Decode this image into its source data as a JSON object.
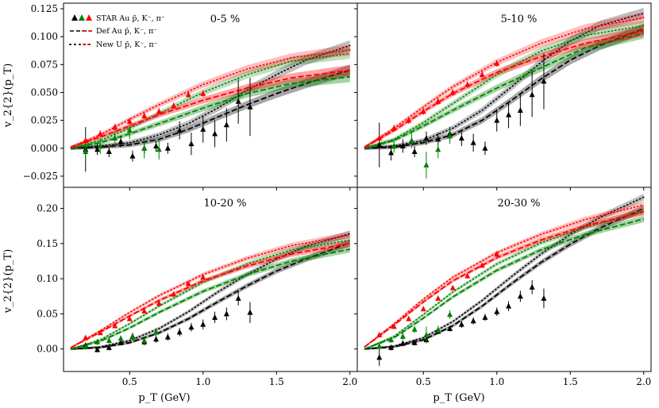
{
  "chart_data": {
    "type": "line",
    "xlabel": "p_T (GeV)",
    "ylabel": "v_2{2}(p_T)",
    "xlim": [
      0.05,
      2.05
    ],
    "xticks": [
      0.5,
      1.0,
      1.5,
      2.0
    ],
    "xtick_labels": [
      "0.5",
      "1.0",
      "1.5",
      "2.0"
    ],
    "colors": {
      "pbar": "#000000",
      "kaon": "#008000",
      "pion": "#ff0000"
    },
    "legend": {
      "location": "top-left of first panel",
      "entries": [
        {
          "label": "STAR Au p̄, K⁻, π⁻",
          "style": "triangles"
        },
        {
          "label": "Def Au p̄, K⁻, π⁻",
          "style": "dashed"
        },
        {
          "label": "New U p̄, K⁻, π⁻",
          "style": "dotted"
        }
      ]
    },
    "panels": [
      {
        "title": "0-5 %",
        "ylim": [
          -0.035,
          0.13
        ],
        "yticks": [
          -0.025,
          0.0,
          0.025,
          0.05,
          0.075,
          0.1,
          0.125
        ],
        "ytick_labels": [
          "−0.025",
          "0.000",
          "0.025",
          "0.050",
          "0.075",
          "0.100",
          "0.125"
        ],
        "star": {
          "pion": {
            "x": [
              0.2,
              0.3,
              0.4,
              0.5,
              0.6,
              0.7,
              0.8,
              0.9,
              1.0
            ],
            "y": [
              0.007,
              0.013,
              0.019,
              0.024,
              0.029,
              0.033,
              0.038,
              0.048,
              0.049
            ],
            "err": [
              0.003,
              0.003,
              0.003,
              0.003,
              0.003,
              0.003,
              0.003,
              0.003,
              0.003
            ]
          },
          "kaon": {
            "x": [
              0.2,
              0.3,
              0.4,
              0.5,
              0.6,
              0.7
            ],
            "y": [
              -0.003,
              0.002,
              0.009,
              0.016,
              0.0,
              -0.001
            ],
            "err": [
              0.008,
              0.007,
              0.008,
              0.008,
              0.009,
              0.009
            ]
          },
          "pbar": {
            "x": [
              0.2,
              0.28,
              0.36,
              0.44,
              0.52,
              0.6,
              0.68,
              0.76,
              0.84,
              0.92,
              1.0,
              1.08,
              1.16,
              1.24,
              1.32
            ],
            "y": [
              -0.001,
              -0.001,
              -0.003,
              0.006,
              -0.007,
              0.0,
              0.002,
              0.0,
              0.016,
              0.004,
              0.017,
              0.013,
              0.021,
              0.042,
              0.037
            ],
            "err": [
              0.02,
              0.005,
              0.005,
              0.005,
              0.005,
              0.005,
              0.005,
              0.005,
              0.008,
              0.01,
              0.012,
              0.012,
              0.015,
              0.02,
              0.026
            ]
          }
        },
        "models": {
          "pion": {
            "x": [
              0.1,
              0.3,
              0.5,
              0.7,
              1.0,
              1.3,
              1.6,
              2.0
            ],
            "def": [
              0.001,
              0.01,
              0.02,
              0.03,
              0.043,
              0.054,
              0.063,
              0.07
            ],
            "newu": [
              0.001,
              0.012,
              0.026,
              0.039,
              0.057,
              0.071,
              0.081,
              0.088
            ]
          },
          "kaon": {
            "x": [
              0.1,
              0.3,
              0.5,
              0.7,
              1.0,
              1.3,
              1.6,
              2.0
            ],
            "def": [
              0.0,
              0.005,
              0.013,
              0.022,
              0.036,
              0.049,
              0.058,
              0.064
            ],
            "newu": [
              0.0,
              0.007,
              0.018,
              0.031,
              0.05,
              0.066,
              0.078,
              0.085
            ]
          },
          "pbar": {
            "x": [
              0.1,
              0.3,
              0.5,
              0.7,
              0.9,
              1.1,
              1.3,
              1.5,
              1.7,
              2.0
            ],
            "def": [
              0.0,
              0.001,
              0.003,
              0.008,
              0.017,
              0.028,
              0.039,
              0.049,
              0.058,
              0.07
            ],
            "newu": [
              0.0,
              0.002,
              0.005,
              0.012,
              0.022,
              0.036,
              0.052,
              0.066,
              0.079,
              0.092
            ]
          }
        }
      },
      {
        "title": "5-10 %",
        "ylim": [
          -0.035,
          0.13
        ],
        "yticks": [
          -0.025,
          0.0,
          0.025,
          0.05,
          0.075,
          0.1,
          0.125
        ],
        "ytick_labels": [
          "",
          "",
          "",
          "",
          "",
          "",
          ""
        ],
        "star": {
          "pion": {
            "x": [
              0.2,
              0.3,
              0.4,
              0.5,
              0.6,
              0.7,
              0.8,
              0.9,
              1.0
            ],
            "y": [
              0.009,
              0.018,
              0.025,
              0.033,
              0.042,
              0.05,
              0.057,
              0.066,
              0.076
            ],
            "err": [
              0.003,
              0.003,
              0.003,
              0.003,
              0.003,
              0.003,
              0.003,
              0.003,
              0.003
            ]
          },
          "kaon": {
            "x": [
              0.3,
              0.42,
              0.52,
              0.6,
              0.68
            ],
            "y": [
              0.002,
              0.007,
              -0.015,
              -0.001,
              0.011
            ],
            "err": [
              0.006,
              0.007,
              0.012,
              0.008,
              0.007
            ]
          },
          "pbar": {
            "x": [
              0.2,
              0.28,
              0.36,
              0.44,
              0.52,
              0.6,
              0.68,
              0.76,
              0.84,
              0.92,
              1.0,
              1.08,
              1.16,
              1.24,
              1.32
            ],
            "y": [
              0.003,
              -0.004,
              0.002,
              -0.003,
              0.009,
              0.008,
              0.013,
              0.009,
              0.005,
              0.0,
              0.025,
              0.03,
              0.034,
              0.048,
              0.06
            ],
            "err": [
              0.02,
              0.007,
              0.006,
              0.005,
              0.006,
              0.006,
              0.006,
              0.007,
              0.008,
              0.006,
              0.01,
              0.012,
              0.014,
              0.02,
              0.025
            ]
          }
        },
        "models": {
          "pion": {
            "x": [
              0.1,
              0.3,
              0.5,
              0.7,
              1.0,
              1.3,
              1.6,
              2.0
            ],
            "def": [
              0.001,
              0.016,
              0.033,
              0.049,
              0.068,
              0.082,
              0.094,
              0.105
            ],
            "newu": [
              0.001,
              0.018,
              0.037,
              0.055,
              0.077,
              0.094,
              0.107,
              0.117
            ]
          },
          "kaon": {
            "x": [
              0.1,
              0.3,
              0.5,
              0.7,
              1.0,
              1.3,
              1.6,
              2.0
            ],
            "def": [
              0.0,
              0.007,
              0.02,
              0.034,
              0.054,
              0.072,
              0.09,
              0.103
            ],
            "newu": [
              0.0,
              0.008,
              0.023,
              0.04,
              0.066,
              0.087,
              0.101,
              0.11
            ]
          },
          "pbar": {
            "x": [
              0.1,
              0.3,
              0.5,
              0.7,
              0.9,
              1.1,
              1.3,
              1.5,
              1.7,
              2.0
            ],
            "def": [
              0.0,
              0.001,
              0.005,
              0.012,
              0.025,
              0.043,
              0.062,
              0.079,
              0.092,
              0.107
            ],
            "newu": [
              0.0,
              0.002,
              0.007,
              0.018,
              0.034,
              0.055,
              0.077,
              0.096,
              0.11,
              0.121
            ]
          }
        }
      },
      {
        "title": "10-20 %",
        "ylim": [
          -0.032,
          0.23
        ],
        "yticks": [
          0.0,
          0.05,
          0.1,
          0.15,
          0.2
        ],
        "ytick_labels": [
          "0.00",
          "0.05",
          "0.10",
          "0.15",
          "0.20"
        ],
        "star": {
          "pion": {
            "x": [
              0.2,
              0.3,
              0.4,
              0.5,
              0.6,
              0.7,
              0.8,
              0.9,
              1.0
            ],
            "y": [
              0.016,
              0.023,
              0.033,
              0.043,
              0.054,
              0.065,
              0.078,
              0.093,
              0.102
            ],
            "err": [
              0.003,
              0.003,
              0.003,
              0.003,
              0.003,
              0.003,
              0.003,
              0.003,
              0.003
            ]
          },
          "kaon": {
            "x": [
              0.2,
              0.28,
              0.36,
              0.44,
              0.52,
              0.6,
              0.68
            ],
            "y": [
              0.003,
              0.01,
              0.012,
              0.015,
              0.017,
              0.012,
              0.024
            ],
            "err": [
              0.004,
              0.004,
              0.004,
              0.004,
              0.004,
              0.006,
              0.006
            ]
          },
          "pbar": {
            "x": [
              0.2,
              0.28,
              0.36,
              0.44,
              0.52,
              0.6,
              0.68,
              0.76,
              0.84,
              0.92,
              1.0,
              1.08,
              1.16,
              1.24,
              1.32
            ],
            "y": [
              0.005,
              -0.001,
              0.002,
              0.009,
              0.018,
              0.01,
              0.014,
              0.017,
              0.024,
              0.031,
              0.035,
              0.045,
              0.05,
              0.072,
              0.052
            ],
            "err": [
              0.004,
              0.004,
              0.004,
              0.004,
              0.005,
              0.005,
              0.005,
              0.005,
              0.006,
              0.006,
              0.007,
              0.008,
              0.009,
              0.01,
              0.015
            ]
          }
        },
        "models": {
          "pion": {
            "x": [
              0.1,
              0.3,
              0.5,
              0.7,
              1.0,
              1.3,
              1.6,
              2.0
            ],
            "def": [
              0.002,
              0.024,
              0.047,
              0.069,
              0.097,
              0.118,
              0.135,
              0.15
            ],
            "newu": [
              0.002,
              0.026,
              0.052,
              0.076,
              0.106,
              0.129,
              0.147,
              0.162
            ]
          },
          "kaon": {
            "x": [
              0.1,
              0.3,
              0.5,
              0.7,
              1.0,
              1.3,
              1.6,
              2.0
            ],
            "def": [
              0.0,
              0.011,
              0.03,
              0.052,
              0.082,
              0.106,
              0.125,
              0.142
            ],
            "newu": [
              0.0,
              0.013,
              0.036,
              0.061,
              0.095,
              0.121,
              0.141,
              0.155
            ]
          },
          "pbar": {
            "x": [
              0.1,
              0.3,
              0.5,
              0.7,
              0.9,
              1.1,
              1.3,
              1.5,
              1.7,
              2.0
            ],
            "def": [
              0.0,
              0.002,
              0.009,
              0.023,
              0.043,
              0.067,
              0.09,
              0.111,
              0.128,
              0.151
            ],
            "newu": [
              0.0,
              0.003,
              0.012,
              0.029,
              0.053,
              0.081,
              0.106,
              0.128,
              0.146,
              0.164
            ]
          }
        }
      },
      {
        "title": "20-30 %",
        "ylim": [
          -0.032,
          0.23
        ],
        "yticks": [
          0.0,
          0.05,
          0.1,
          0.15,
          0.2
        ],
        "ytick_labels": [
          "",
          "",
          "",
          "",
          ""
        ],
        "star": {
          "pion": {
            "x": [
              0.2,
              0.3,
              0.4,
              0.5,
              0.6,
              0.7,
              0.8,
              0.9,
              1.0
            ],
            "y": [
              0.02,
              0.032,
              0.043,
              0.057,
              0.072,
              0.087,
              0.104,
              0.119,
              0.135
            ],
            "err": [
              0.003,
              0.003,
              0.003,
              0.003,
              0.003,
              0.003,
              0.003,
              0.003,
              0.003
            ]
          },
          "kaon": {
            "x": [
              0.2,
              0.28,
              0.36,
              0.44,
              0.52,
              0.6,
              0.68
            ],
            "y": [
              0.004,
              0.013,
              0.018,
              0.028,
              0.02,
              0.027,
              0.049
            ],
            "err": [
              0.004,
              0.004,
              0.005,
              0.005,
              0.012,
              0.006,
              0.006
            ]
          },
          "pbar": {
            "x": [
              0.2,
              0.28,
              0.36,
              0.44,
              0.52,
              0.6,
              0.68,
              0.76,
              0.84,
              0.92,
              1.0,
              1.08,
              1.16,
              1.24,
              1.32
            ],
            "y": [
              -0.012,
              0.002,
              0.008,
              0.009,
              0.013,
              0.025,
              0.029,
              0.035,
              0.04,
              0.045,
              0.053,
              0.061,
              0.075,
              0.088,
              0.072
            ],
            "err": [
              0.012,
              0.004,
              0.004,
              0.004,
              0.004,
              0.004,
              0.004,
              0.005,
              0.005,
              0.005,
              0.006,
              0.007,
              0.008,
              0.01,
              0.014
            ]
          }
        },
        "models": {
          "pion": {
            "x": [
              0.1,
              0.3,
              0.5,
              0.7,
              1.0,
              1.3,
              1.6,
              2.0
            ],
            "def": [
              0.003,
              0.034,
              0.067,
              0.097,
              0.13,
              0.155,
              0.175,
              0.195
            ],
            "newu": [
              0.003,
              0.036,
              0.071,
              0.102,
              0.137,
              0.163,
              0.184,
              0.205
            ]
          },
          "kaon": {
            "x": [
              0.1,
              0.3,
              0.5,
              0.7,
              1.0,
              1.3,
              1.6,
              2.0
            ],
            "def": [
              0.0,
              0.016,
              0.044,
              0.074,
              0.112,
              0.141,
              0.163,
              0.185
            ],
            "newu": [
              0.0,
              0.018,
              0.049,
              0.081,
              0.121,
              0.151,
              0.173,
              0.196
            ]
          },
          "pbar": {
            "x": [
              0.1,
              0.3,
              0.5,
              0.7,
              0.9,
              1.1,
              1.3,
              1.5,
              1.7,
              2.0
            ],
            "def": [
              0.0,
              0.003,
              0.013,
              0.033,
              0.061,
              0.093,
              0.123,
              0.149,
              0.172,
              0.2
            ],
            "newu": [
              0.0,
              0.004,
              0.016,
              0.039,
              0.069,
              0.103,
              0.135,
              0.163,
              0.187,
              0.216
            ]
          }
        }
      }
    ]
  }
}
